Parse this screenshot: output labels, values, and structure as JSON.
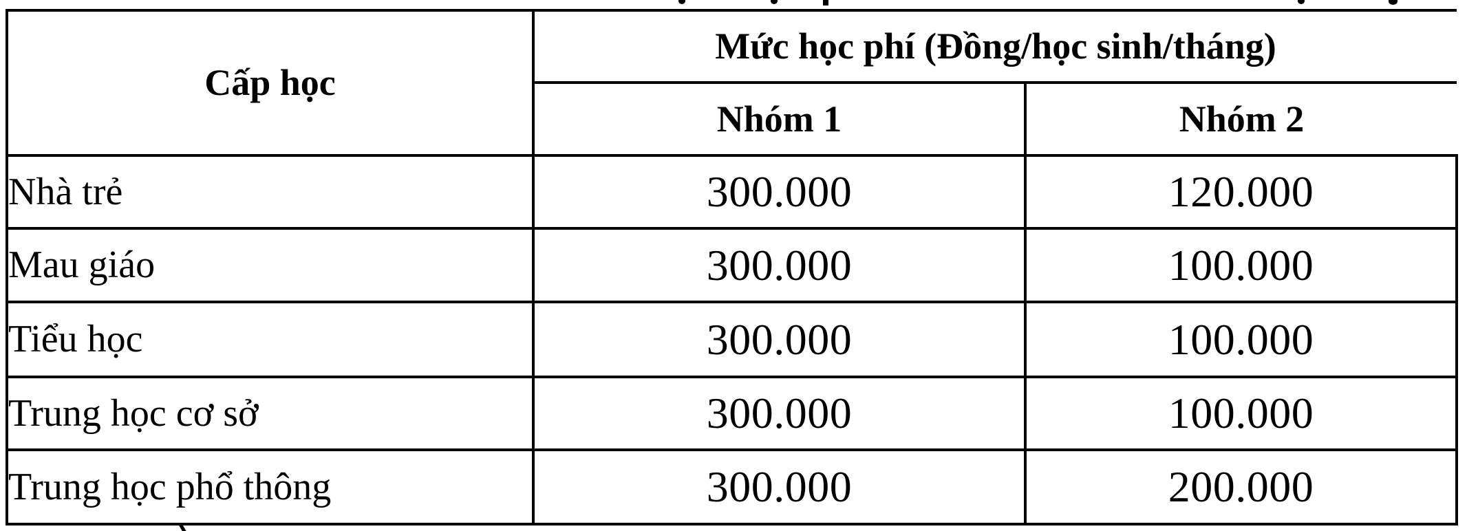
{
  "page": {
    "background_color": "#ffffff",
    "text_color": "#000000",
    "border_color": "#000000"
  },
  "table": {
    "level_header": "Cấp học",
    "fee_header": "Mức học phí (Đồng/học sinh/tháng)",
    "group_headers": [
      "Nhóm 1",
      "Nhóm 2"
    ],
    "rows": [
      {
        "level": "Nhà trẻ",
        "nhom1": "300.000",
        "nhom2": "120.000"
      },
      {
        "level": "Mau giáo",
        "nhom1": "300.000",
        "nhom2": "100.000"
      },
      {
        "level": "Tiểu học",
        "nhom1": "300.000",
        "nhom2": "100.000"
      },
      {
        "level": "Trung học cơ sở",
        "nhom1": "300.000",
        "nhom2": "100.000"
      },
      {
        "level": "Trung học phổ thông",
        "nhom1": "300.000",
        "nhom2": "200.000"
      }
    ]
  },
  "chart_data": {
    "type": "table",
    "title": "Mức học phí (Đồng/học sinh/tháng)",
    "categories": [
      "Nhà trẻ",
      "Mau giáo",
      "Tiểu học",
      "Trung học cơ sở",
      "Trung học phổ thông"
    ],
    "series": [
      {
        "name": "Nhóm 1",
        "values": [
          300000,
          300000,
          300000,
          300000,
          300000
        ]
      },
      {
        "name": "Nhóm 2",
        "values": [
          120000,
          100000,
          100000,
          100000,
          200000
        ]
      }
    ]
  }
}
